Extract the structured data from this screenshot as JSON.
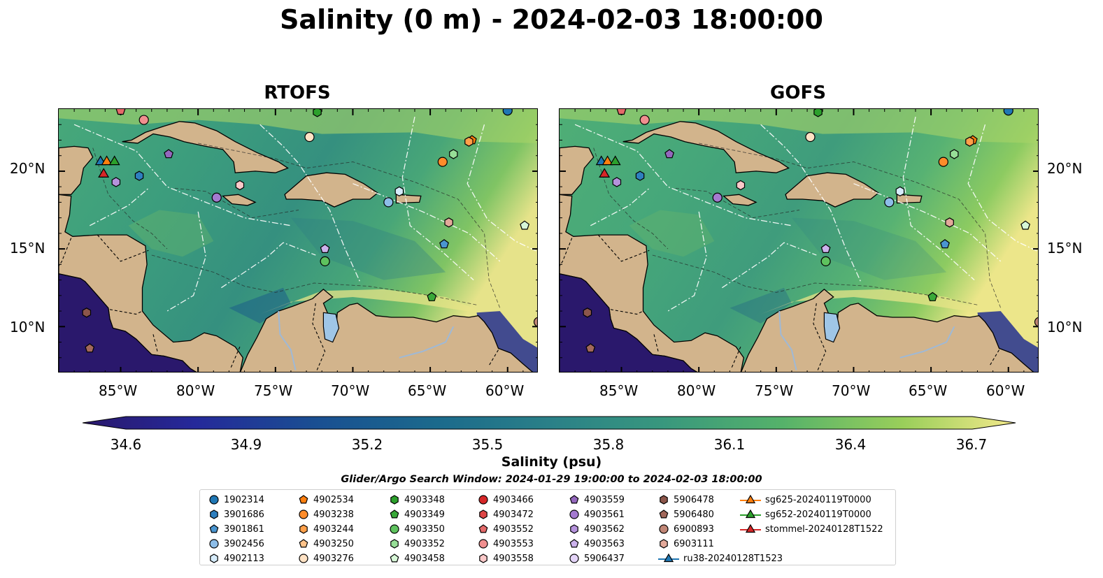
{
  "figure": {
    "title": "Salinity (0 m) - 2024-02-03 18:00:00",
    "panels": [
      {
        "title": "RTOFS"
      },
      {
        "title": "GOFS"
      }
    ],
    "lon_ticks": [
      "85°W",
      "80°W",
      "75°W",
      "70°W",
      "65°W",
      "60°W"
    ],
    "lat_ticks": [
      "20°N",
      "15°N",
      "10°N"
    ],
    "extent": {
      "lon": [
        -89,
        -58
      ],
      "lat": [
        7,
        24
      ]
    },
    "colors": {
      "land": "#d2b48c",
      "low": "#2b1a6b",
      "mid": "#3aa37c",
      "high": "#f5ea8c",
      "lakes": "#9fc6e7"
    }
  },
  "colorbar": {
    "label": "Salinity (psu)",
    "range": [
      34.6,
      36.7
    ],
    "extend": "both",
    "ticks": [
      "34.6",
      "34.9",
      "35.2",
      "35.5",
      "35.8",
      "36.1",
      "36.4",
      "36.7"
    ],
    "colormap": "haline"
  },
  "search_window": "Glider/Argo Search Window: 2024-01-29 19:00:00 to 2024-02-03 18:00:00",
  "legend": {
    "items": [
      {
        "label": "1902314",
        "color": "#1f77b4",
        "marker": "circle"
      },
      {
        "label": "3901686",
        "color": "#2e7fbf",
        "marker": "hexagon"
      },
      {
        "label": "3901861",
        "color": "#4a95d0",
        "marker": "pentagon"
      },
      {
        "label": "3902456",
        "color": "#8dbde8",
        "marker": "circle"
      },
      {
        "label": "4902113",
        "color": "#d6ecfb",
        "marker": "hexagon"
      },
      {
        "label": "4902534",
        "color": "#ff7f0e",
        "marker": "pentagon"
      },
      {
        "label": "4903238",
        "color": "#ff8c2a",
        "marker": "circle"
      },
      {
        "label": "4903244",
        "color": "#ffa04a",
        "marker": "hexagon"
      },
      {
        "label": "4903250",
        "color": "#ffc38a",
        "marker": "pentagon"
      },
      {
        "label": "4903276",
        "color": "#ffe2c4",
        "marker": "circle"
      },
      {
        "label": "4903348",
        "color": "#2ca02c",
        "marker": "hexagon"
      },
      {
        "label": "4903349",
        "color": "#39a839",
        "marker": "pentagon"
      },
      {
        "label": "4903350",
        "color": "#5ec25e",
        "marker": "circle"
      },
      {
        "label": "4903352",
        "color": "#97de97",
        "marker": "hexagon"
      },
      {
        "label": "4903458",
        "color": "#d7f7d7",
        "marker": "pentagon"
      },
      {
        "label": "4903466",
        "color": "#d62728",
        "marker": "circle"
      },
      {
        "label": "4903472",
        "color": "#de4646",
        "marker": "hexagon"
      },
      {
        "label": "4903552",
        "color": "#e46a6a",
        "marker": "pentagon"
      },
      {
        "label": "4903553",
        "color": "#f08f8f",
        "marker": "circle"
      },
      {
        "label": "4903558",
        "color": "#fbc9c9",
        "marker": "hexagon"
      },
      {
        "label": "4903559",
        "color": "#9467bd",
        "marker": "pentagon"
      },
      {
        "label": "4903561",
        "color": "#a47ad0",
        "marker": "circle"
      },
      {
        "label": "4903562",
        "color": "#b592dc",
        "marker": "hexagon"
      },
      {
        "label": "4903563",
        "color": "#ccb2ec",
        "marker": "pentagon"
      },
      {
        "label": "5906437",
        "color": "#e4d4f8",
        "marker": "circle"
      },
      {
        "label": "5906478",
        "color": "#8c564b",
        "marker": "hexagon"
      },
      {
        "label": "5906480",
        "color": "#a2685b",
        "marker": "pentagon"
      },
      {
        "label": "6900893",
        "color": "#c08676",
        "marker": "circle"
      },
      {
        "label": "6903111",
        "color": "#e3a99a",
        "marker": "hexagon"
      },
      {
        "label": "ru38-20240128T1523",
        "color": "#1f77b4",
        "marker": "triangle"
      },
      {
        "label": "sg625-20240119T0000",
        "color": "#ff7f0e",
        "marker": "triangle"
      },
      {
        "label": "sg652-20240119T0000",
        "color": "#2ca02c",
        "marker": "triangle"
      },
      {
        "label": "stommel-20240128T1522",
        "color": "#d62728",
        "marker": "triangle"
      }
    ]
  },
  "markers": [
    {
      "id": "1902314",
      "lon": -60.0,
      "lat": 23.9
    },
    {
      "id": "3901686",
      "lon": -83.8,
      "lat": 19.7
    },
    {
      "id": "3902456",
      "lon": -67.7,
      "lat": 18.0
    },
    {
      "id": "4902113",
      "lon": -67.0,
      "lat": 18.7
    },
    {
      "id": "4902534",
      "lon": -62.3,
      "lat": 22.0
    },
    {
      "id": "4903238",
      "lon": -64.2,
      "lat": 20.6
    },
    {
      "id": "4903244",
      "lon": -62.5,
      "lat": 21.9
    },
    {
      "id": "4903276",
      "lon": -72.8,
      "lat": 22.2
    },
    {
      "id": "4903348",
      "lon": -72.3,
      "lat": 23.8
    },
    {
      "id": "4903350",
      "lon": -71.8,
      "lat": 14.2
    },
    {
      "id": "4903352",
      "lon": -63.5,
      "lat": 21.1
    },
    {
      "id": "4903458",
      "lon": -58.9,
      "lat": 16.5
    },
    {
      "id": "4903553",
      "lon": -83.5,
      "lat": 23.3
    },
    {
      "id": "4903558",
      "lon": -77.3,
      "lat": 19.1
    },
    {
      "id": "4903559",
      "lon": -81.9,
      "lat": 21.1
    },
    {
      "id": "4903561",
      "lon": -78.8,
      "lat": 18.3
    },
    {
      "id": "4903562",
      "lon": -85.3,
      "lat": 19.3
    },
    {
      "id": "4903563",
      "lon": -71.8,
      "lat": 15.0
    },
    {
      "id": "3901861",
      "lon": -64.1,
      "lat": 15.3
    },
    {
      "id": "4903349",
      "lon": -64.9,
      "lat": 11.9
    },
    {
      "id": "4903552",
      "lon": -85.0,
      "lat": 23.9
    },
    {
      "id": "5906478",
      "lon": -87.2,
      "lat": 10.9
    },
    {
      "id": "5906480",
      "lon": -87.0,
      "lat": 8.6
    },
    {
      "id": "6900893",
      "lon": -58.0,
      "lat": 10.3
    },
    {
      "id": "6903111",
      "lon": -63.8,
      "lat": 16.7
    },
    {
      "id": "ru38-20240128T1523",
      "lon": -86.3,
      "lat": 20.6
    },
    {
      "id": "sg625-20240119T0000",
      "lon": -85.9,
      "lat": 20.6
    },
    {
      "id": "sg652-20240119T0000",
      "lon": -85.4,
      "lat": 20.6
    },
    {
      "id": "stommel-20240128T1522",
      "lon": -86.1,
      "lat": 19.8
    }
  ]
}
